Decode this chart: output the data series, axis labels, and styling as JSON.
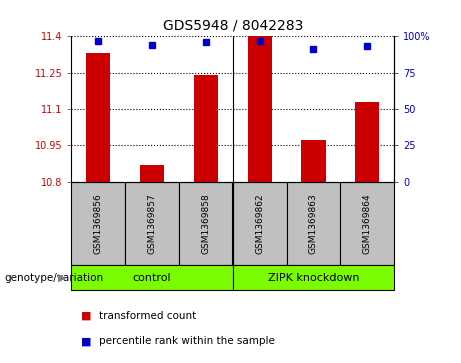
{
  "title": "GDS5948 / 8042283",
  "samples": [
    "GSM1369856",
    "GSM1369857",
    "GSM1369858",
    "GSM1369862",
    "GSM1369863",
    "GSM1369864"
  ],
  "bar_values": [
    11.33,
    10.87,
    11.24,
    11.4,
    10.97,
    11.13
  ],
  "percentile_values": [
    97,
    94,
    96,
    97,
    91,
    93
  ],
  "ylim_left": [
    10.8,
    11.4
  ],
  "ylim_right": [
    0,
    100
  ],
  "yticks_left": [
    10.8,
    10.95,
    11.1,
    11.25,
    11.4
  ],
  "ytick_labels_left": [
    "10.8",
    "10.95",
    "11.1",
    "11.25",
    "11.4"
  ],
  "yticks_right": [
    0,
    25,
    50,
    75,
    100
  ],
  "ytick_labels_right": [
    "0",
    "25",
    "50",
    "75",
    "100%"
  ],
  "bar_color": "#CC0000",
  "dot_color": "#0000CC",
  "bar_width": 0.45,
  "genotype_label": "genotype/variation",
  "legend_items": [
    {
      "color": "#CC0000",
      "label": "transformed count"
    },
    {
      "color": "#0000CC",
      "label": "percentile rank within the sample"
    }
  ],
  "background_color": "#ffffff",
  "group_box_color": "#c0c0c0",
  "group_spans": [
    [
      -0.5,
      2.5,
      "control"
    ],
    [
      2.5,
      5.5,
      "ZIPK knockdown"
    ]
  ],
  "group_color": "#7CFC00"
}
